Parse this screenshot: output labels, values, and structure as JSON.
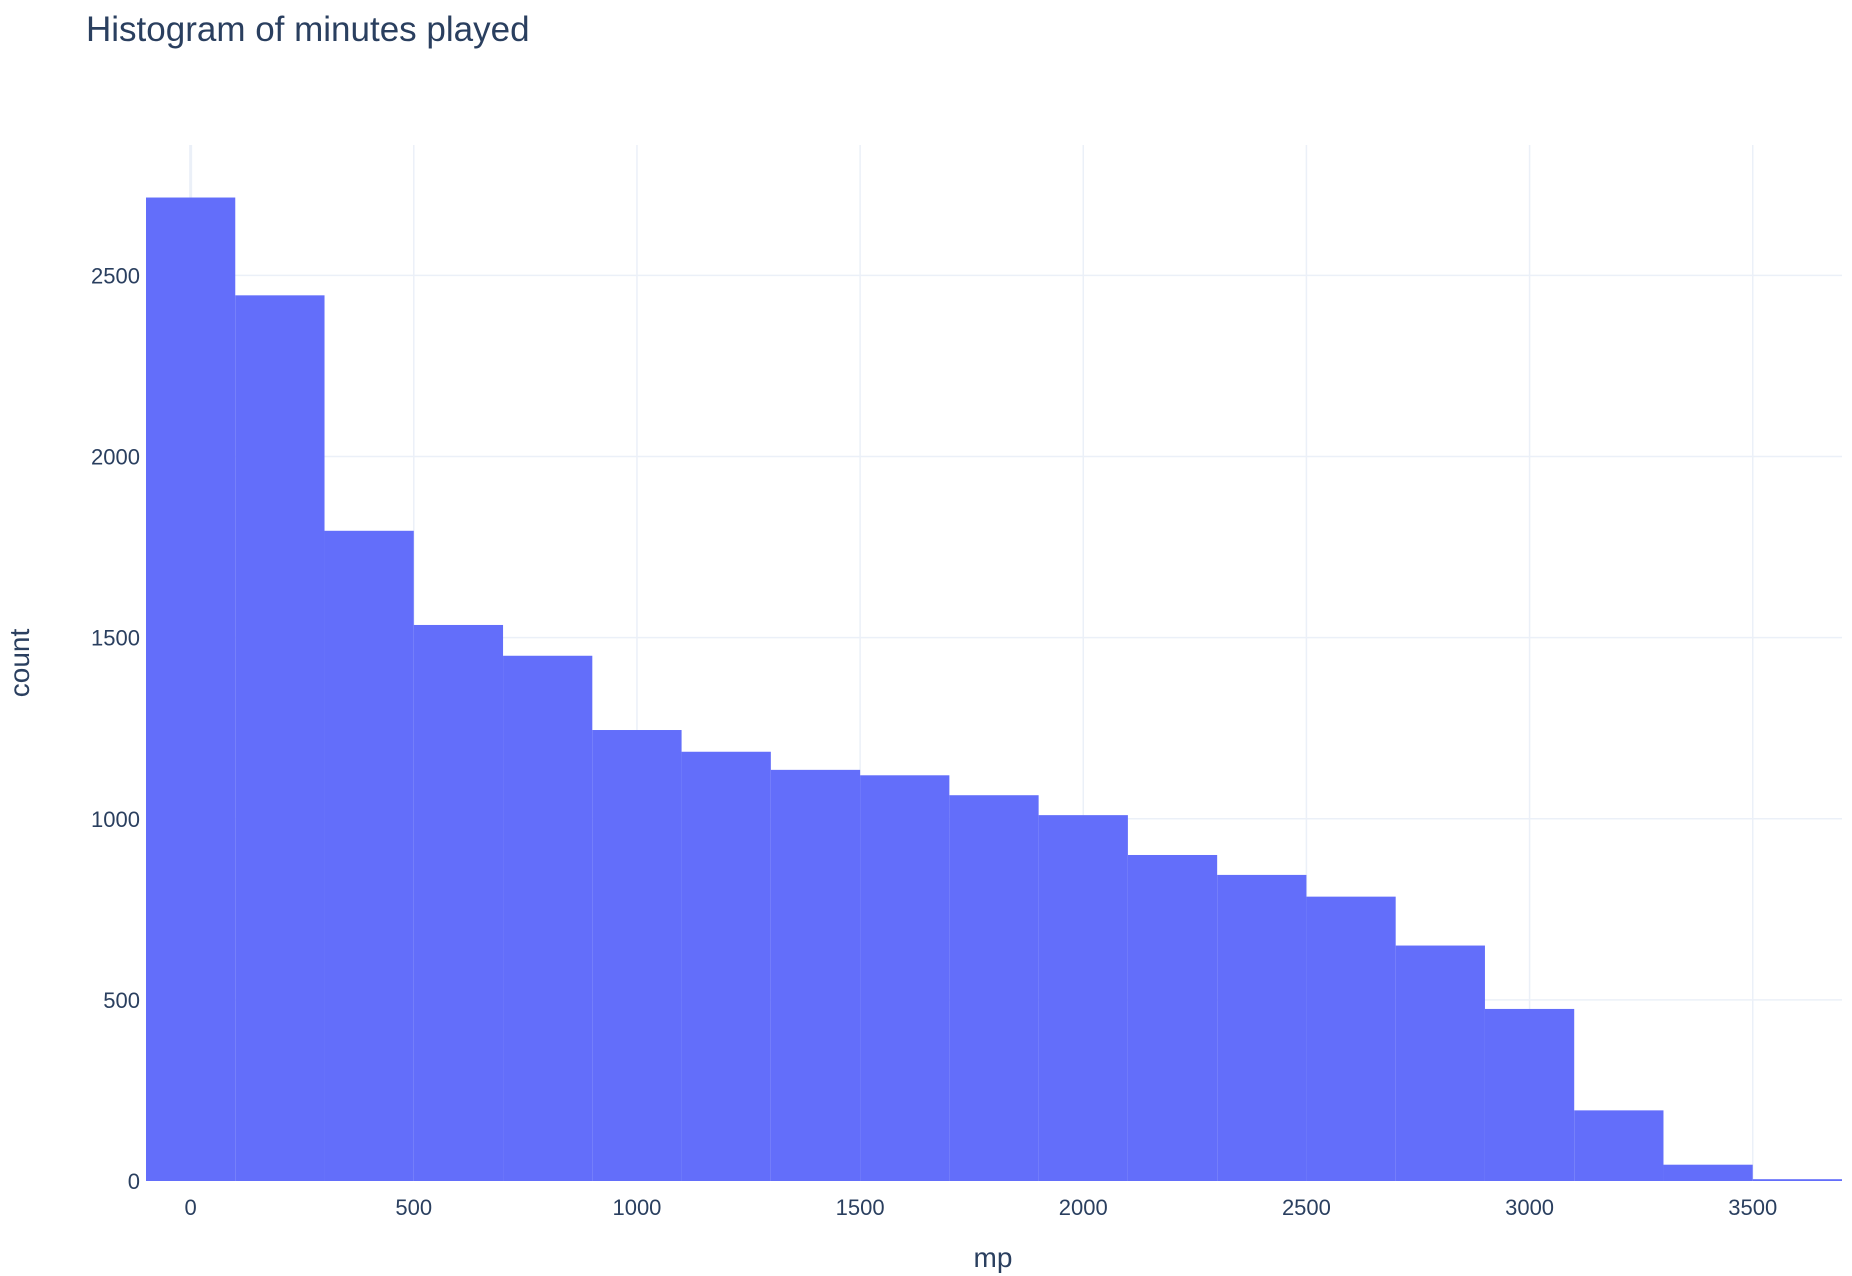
{
  "chart_data": {
    "type": "bar",
    "title": "Histogram of minutes played",
    "xlabel": "mp",
    "ylabel": "count",
    "bin_edges": [
      -100,
      100,
      300,
      500,
      700,
      900,
      1100,
      1300,
      1500,
      1700,
      1900,
      2100,
      2300,
      2500,
      2700,
      2900,
      3100,
      3300,
      3500,
      3700
    ],
    "values": [
      2715,
      2445,
      1795,
      1535,
      1450,
      1245,
      1185,
      1135,
      1120,
      1065,
      1010,
      900,
      845,
      785,
      650,
      475,
      195,
      45,
      5
    ],
    "xlim": [
      -100,
      3700
    ],
    "ylim": [
      0,
      2860
    ],
    "xticks": [
      0,
      500,
      1000,
      1500,
      2000,
      2500,
      3000,
      3500
    ],
    "yticks": [
      0,
      500,
      1000,
      1500,
      2000,
      2500
    ],
    "color": "#636efa",
    "grid": true
  }
}
